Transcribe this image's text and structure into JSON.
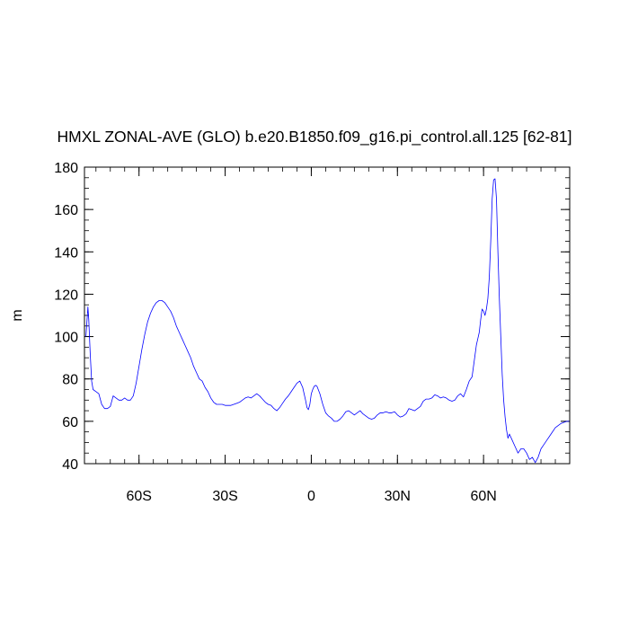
{
  "chart_data": {
    "type": "line",
    "title": "HMXL ZONAL-AVE (GLO) b.e20.B1850.f09_g16.pi_control.all.125 [62-81]",
    "xlabel": "",
    "ylabel": "m",
    "xlim": [
      -79,
      90
    ],
    "ylim": [
      40,
      180
    ],
    "grid": false,
    "line_color": "#0000ff",
    "x_ticks": [
      {
        "value": -60,
        "label": "60S"
      },
      {
        "value": -30,
        "label": "30S"
      },
      {
        "value": 0,
        "label": "0"
      },
      {
        "value": 30,
        "label": "30N"
      },
      {
        "value": 60,
        "label": "60N"
      }
    ],
    "y_ticks": [
      40,
      60,
      80,
      100,
      120,
      140,
      160,
      180
    ],
    "series": [
      {
        "x": [
          -78.5,
          -78.0,
          -77.8,
          -77.5,
          -77.0,
          -76.5,
          -76.0,
          -75.0,
          -74.0,
          -73.0,
          -72.0,
          -71.0,
          -70.0,
          -69.0,
          -68.0,
          -67.0,
          -66.0,
          -65.0,
          -64.0,
          -63.0,
          -62.0,
          -61.0,
          -60.0,
          -59.0,
          -58.0,
          -57.0,
          -56.0,
          -55.0,
          -54.0,
          -53.0,
          -52.0,
          -51.0,
          -50.0,
          -49.0,
          -48.0,
          -47.0,
          -46.0,
          -45.0,
          -44.0,
          -43.0,
          -42.0,
          -41.0,
          -40.0,
          -39.0,
          -38.0,
          -37.0,
          -36.0,
          -35.0,
          -34.0,
          -33.0,
          -32.0,
          -31.0,
          -30.0,
          -29.0,
          -28.0,
          -27.0,
          -26.0,
          -25.0,
          -24.0,
          -23.0,
          -22.0,
          -21.0,
          -20.0,
          -19.0,
          -18.0,
          -17.0,
          -16.0,
          -15.0,
          -14.0,
          -13.0,
          -12.0,
          -11.0,
          -10.0,
          -9.0,
          -8.0,
          -7.0,
          -6.0,
          -5.0,
          -4.0,
          -3.0,
          -2.0,
          -1.5,
          -1.0,
          -0.5,
          0.0,
          0.5,
          1.0,
          1.5,
          2.0,
          3.0,
          4.0,
          5.0,
          6.0,
          7.0,
          8.0,
          9.0,
          10.0,
          11.0,
          12.0,
          13.0,
          14.0,
          15.0,
          16.0,
          17.0,
          18.0,
          19.0,
          20.0,
          21.0,
          22.0,
          23.0,
          24.0,
          25.0,
          26.0,
          27.0,
          28.0,
          29.0,
          30.0,
          31.0,
          32.0,
          33.0,
          34.0,
          35.0,
          36.0,
          37.0,
          38.0,
          39.0,
          40.0,
          41.0,
          42.0,
          43.0,
          44.0,
          45.0,
          46.0,
          47.0,
          48.0,
          49.0,
          50.0,
          51.0,
          52.0,
          53.0,
          54.0,
          55.0,
          56.0,
          56.5,
          57.0,
          57.5,
          58.0,
          58.5,
          59.0,
          59.5,
          60.0,
          60.5,
          61.0,
          61.5,
          62.0,
          62.5,
          63.0,
          63.5,
          64.0,
          64.5,
          65.0,
          65.5,
          66.0,
          66.5,
          67.0,
          67.5,
          68.0,
          68.5,
          69.0,
          70.0,
          71.0,
          72.0,
          73.0,
          74.0,
          75.0,
          76.0,
          77.0,
          78.0,
          79.0,
          80.0,
          81.0,
          82.0,
          83.0,
          84.0,
          85.0,
          86.0,
          87.0,
          88.0,
          89.0,
          90.0
        ],
        "y": [
          100.0,
          110.0,
          114.0,
          108.0,
          92.0,
          79.0,
          75.0,
          74.0,
          73.0,
          68.0,
          66.0,
          66.0,
          67.0,
          72.0,
          71.0,
          70.0,
          70.0,
          71.0,
          70.0,
          70.0,
          72.0,
          78.0,
          86.0,
          94.0,
          101.0,
          107.0,
          111.0,
          114.0,
          116.0,
          117.0,
          117.0,
          116.0,
          114.0,
          112.0,
          109.0,
          105.0,
          102.0,
          99.0,
          96.0,
          93.0,
          90.0,
          86.0,
          83.0,
          80.0,
          79.0,
          76.0,
          74.0,
          71.0,
          69.0,
          68.0,
          68.0,
          68.0,
          67.5,
          67.5,
          67.5,
          68.0,
          68.5,
          69.0,
          70.0,
          71.0,
          71.5,
          71.0,
          72.0,
          73.0,
          72.0,
          70.5,
          69.0,
          68.0,
          67.5,
          66.0,
          65.0,
          66.5,
          68.5,
          70.5,
          72.0,
          74.0,
          76.0,
          78.0,
          79.0,
          76.0,
          70.0,
          66.5,
          65.5,
          68.0,
          73.0,
          75.0,
          76.5,
          77.0,
          76.5,
          73.0,
          68.0,
          64.0,
          62.5,
          61.5,
          60.0,
          60.0,
          61.0,
          62.5,
          64.5,
          65.0,
          64.0,
          63.0,
          64.0,
          65.0,
          63.5,
          62.5,
          61.5,
          61.0,
          61.5,
          63.0,
          64.0,
          64.0,
          64.5,
          64.0,
          64.0,
          64.5,
          63.0,
          62.0,
          62.5,
          63.5,
          66.0,
          65.5,
          65.0,
          66.0,
          67.0,
          69.5,
          70.5,
          70.5,
          71.0,
          72.5,
          72.0,
          71.0,
          71.5,
          71.0,
          70.0,
          69.5,
          70.0,
          72.0,
          73.0,
          71.5,
          75.0,
          79.0,
          81.0,
          86.0,
          91.0,
          96.0,
          99.0,
          102.0,
          108.0,
          113.0,
          112.0,
          110.0,
          113.0,
          118.0,
          128.0,
          145.0,
          165.0,
          174.0,
          174.5,
          165.0,
          140.0,
          118.0,
          100.0,
          82.0,
          70.0,
          62.0,
          56.0,
          52.0,
          54.0,
          51.0,
          48.0,
          45.0,
          47.0,
          47.0,
          45.0,
          42.0,
          43.0,
          40.5,
          43.0,
          47.0,
          49.0,
          51.0,
          53.0,
          55.0,
          57.0,
          58.0,
          59.0,
          59.5,
          60.0,
          60.0
        ]
      }
    ]
  }
}
